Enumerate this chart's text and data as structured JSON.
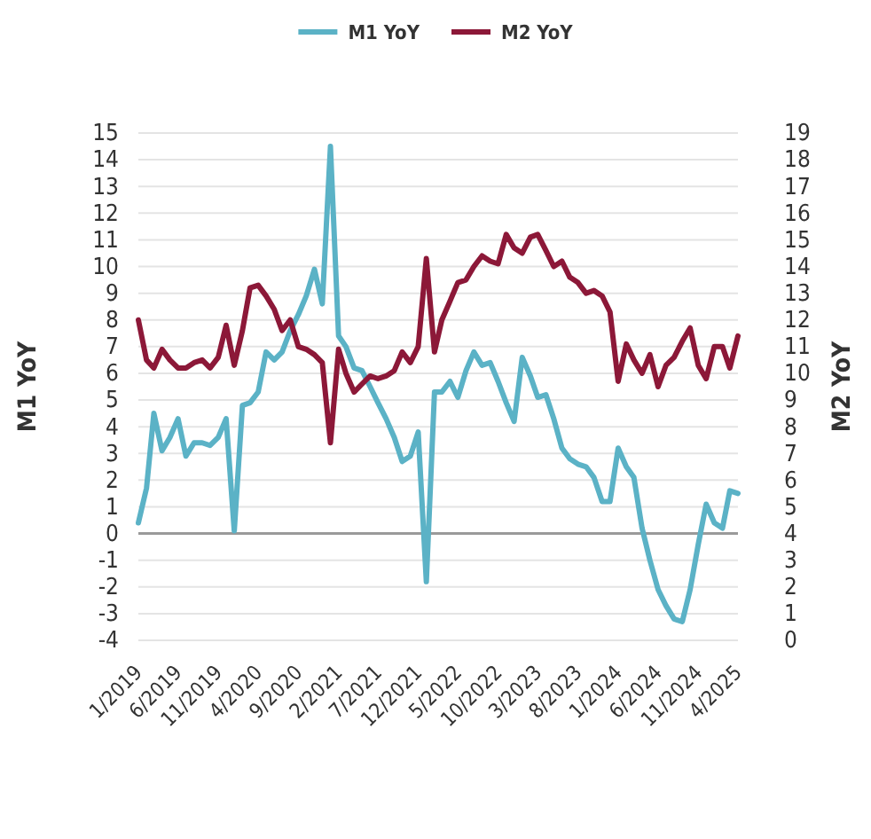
{
  "chart_data": {
    "type": "line",
    "ylabel": "M1 YoY",
    "y2label": "M2 YoY",
    "legend": "top",
    "grid": "y",
    "line_style": "solid",
    "marker": "none",
    "x": [
      "2019-01",
      "2019-02",
      "2019-03",
      "2019-04",
      "2019-05",
      "2019-06",
      "2019-07",
      "2019-08",
      "2019-09",
      "2019-10",
      "2019-11",
      "2019-12",
      "2020-01",
      "2020-02",
      "2020-03",
      "2020-04",
      "2020-05",
      "2020-06",
      "2020-07",
      "2020-08",
      "2020-09",
      "2020-10",
      "2020-11",
      "2020-12",
      "2021-01",
      "2021-02",
      "2021-03",
      "2021-04",
      "2021-05",
      "2021-06",
      "2021-07",
      "2021-08",
      "2021-09",
      "2021-10",
      "2021-11",
      "2021-12",
      "2022-01",
      "2022-02",
      "2022-03",
      "2022-04",
      "2022-05",
      "2022-06",
      "2022-07",
      "2022-08",
      "2022-09",
      "2022-10",
      "2022-11",
      "2022-12",
      "2023-01",
      "2023-02",
      "2023-03",
      "2023-04",
      "2023-05",
      "2023-06",
      "2023-07",
      "2023-08",
      "2023-09",
      "2023-10",
      "2023-11",
      "2023-12",
      "2024-01",
      "2024-02",
      "2024-03",
      "2024-04",
      "2024-05",
      "2024-06",
      "2024-07",
      "2024-08",
      "2024-09",
      "2024-10",
      "2024-11",
      "2024-12",
      "2025-01",
      "2025-02",
      "2025-03",
      "2025-04"
    ],
    "xlim": [
      "2019-01",
      "2025-04"
    ],
    "xticks": [
      {
        "value": "2019-01",
        "label": "1/2019"
      },
      {
        "value": "2019-06",
        "label": "6/2019"
      },
      {
        "value": "2019-11",
        "label": "11/2019"
      },
      {
        "value": "2020-04",
        "label": "4/2020"
      },
      {
        "value": "2020-09",
        "label": "9/2020"
      },
      {
        "value": "2021-02",
        "label": "2/2021"
      },
      {
        "value": "2021-07",
        "label": "7/2021"
      },
      {
        "value": "2021-12",
        "label": "12/2021"
      },
      {
        "value": "2022-05",
        "label": "5/2022"
      },
      {
        "value": "2022-10",
        "label": "10/2022"
      },
      {
        "value": "2023-03",
        "label": "3/2023"
      },
      {
        "value": "2023-08",
        "label": "8/2023"
      },
      {
        "value": "2024-01",
        "label": "1/2024"
      },
      {
        "value": "2024-06",
        "label": "6/2024"
      },
      {
        "value": "2024-11",
        "label": "11/2024"
      },
      {
        "value": "2025-04",
        "label": "4/2025"
      }
    ],
    "ylim": [
      -4,
      15
    ],
    "yticks": [
      -4,
      -3,
      -2,
      -1,
      0,
      1,
      2,
      3,
      4,
      5,
      6,
      7,
      8,
      9,
      10,
      11,
      12,
      13,
      14,
      15
    ],
    "y2lim": [
      0,
      19
    ],
    "y2ticks": [
      0,
      1,
      2,
      3,
      4,
      5,
      6,
      7,
      8,
      9,
      10,
      11,
      12,
      13,
      14,
      15,
      16,
      17,
      18,
      19
    ],
    "ref_lines": [
      {
        "axis": "y",
        "value": 0,
        "color": "#9a9a9a"
      }
    ],
    "series": [
      {
        "name": "M1 YoY",
        "color": "#5bb2c6",
        "values": [
          0.4,
          1.7,
          4.5,
          3.1,
          3.6,
          4.3,
          2.9,
          3.4,
          3.4,
          3.3,
          3.6,
          4.3,
          0.1,
          4.8,
          4.9,
          5.3,
          6.8,
          6.5,
          6.8,
          7.6,
          8.2,
          8.9,
          9.9,
          8.6,
          14.5,
          7.4,
          7.0,
          6.2,
          6.1,
          5.5,
          4.9,
          4.3,
          3.6,
          2.7,
          2.9,
          3.8,
          -1.8,
          5.3,
          5.3,
          5.7,
          5.1,
          6.1,
          6.8,
          6.3,
          6.4,
          5.7,
          4.9,
          4.2,
          6.6,
          5.9,
          5.1,
          5.2,
          4.3,
          3.2,
          2.8,
          2.6,
          2.5,
          2.1,
          1.2,
          1.2,
          3.2,
          2.5,
          2.1,
          0.2,
          -1.0,
          -2.1,
          -2.7,
          -3.2,
          -3.3,
          -2.1,
          -0.4,
          1.1,
          0.4,
          0.2,
          1.6,
          1.5
        ]
      },
      {
        "name": "M2 YoY",
        "color": "#8c1838",
        "axis": "y2",
        "values": [
          12.0,
          10.5,
          10.2,
          10.9,
          10.5,
          10.2,
          10.2,
          10.4,
          10.5,
          10.2,
          10.6,
          11.8,
          10.3,
          11.6,
          13.2,
          13.3,
          12.9,
          12.4,
          11.6,
          12.0,
          11.0,
          10.9,
          10.7,
          10.4,
          7.4,
          10.9,
          10.0,
          9.3,
          9.6,
          9.9,
          9.8,
          9.9,
          10.1,
          10.8,
          10.4,
          11.0,
          14.3,
          10.8,
          12.0,
          12.7,
          13.4,
          13.5,
          14.0,
          14.4,
          14.2,
          14.1,
          15.2,
          14.7,
          14.5,
          15.1,
          15.2,
          14.6,
          14.0,
          14.2,
          13.6,
          13.4,
          13.0,
          13.1,
          12.9,
          12.3,
          9.7,
          11.1,
          10.5,
          10.0,
          10.7,
          9.5,
          10.3,
          10.6,
          11.2,
          11.7,
          10.3,
          9.8,
          11.0,
          11.0,
          10.2,
          11.4
        ]
      }
    ]
  }
}
